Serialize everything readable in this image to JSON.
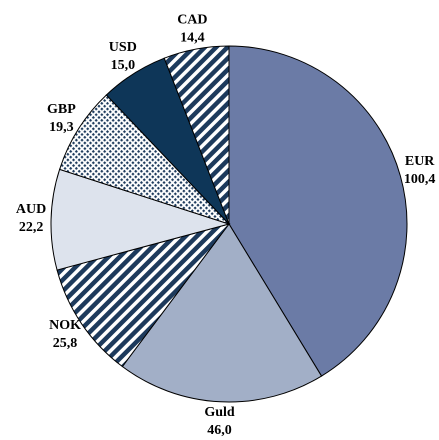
{
  "chart_data": {
    "type": "pie",
    "categories": [
      "EUR",
      "Guld",
      "NOK",
      "AUD",
      "GBP",
      "USD",
      "CAD"
    ],
    "values": [
      100.4,
      46.0,
      25.8,
      22.2,
      19.3,
      15.0,
      14.4
    ],
    "value_labels": [
      "100,4",
      "46,0",
      "25,8",
      "22,2",
      "19,3",
      "15,0",
      "14,4"
    ],
    "colors": [
      "#6b7ba6",
      "#a2afc7",
      "#1d3a5c",
      "#dde3ed",
      "#1d3a5c",
      "#0e3658",
      "#1d3a5c"
    ],
    "patterns": [
      "solid",
      "solid",
      "stripes",
      "solid",
      "dots",
      "solid",
      "stripes"
    ]
  }
}
